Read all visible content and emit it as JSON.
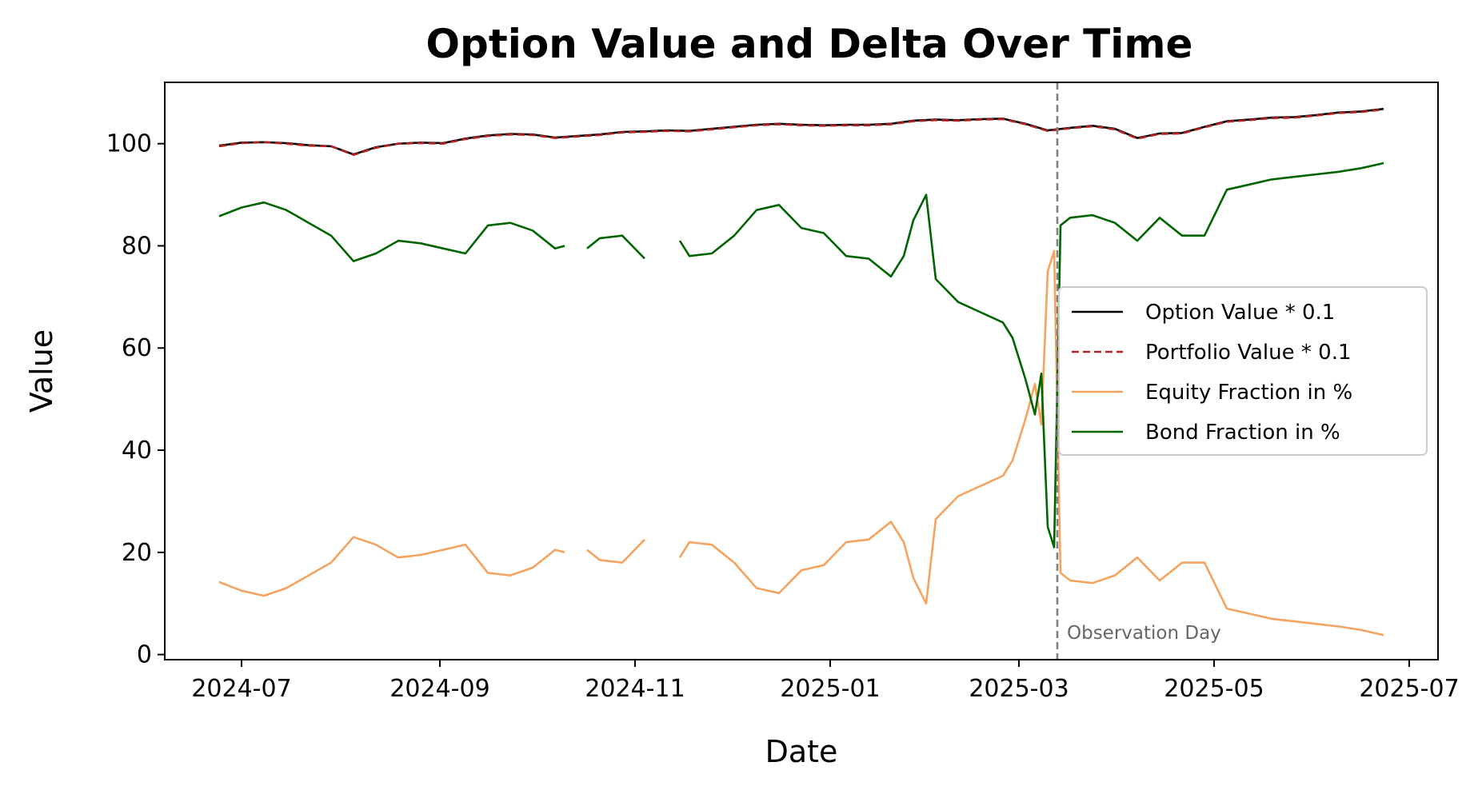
{
  "chart_data": {
    "type": "line",
    "title": "Option Value and Delta Over Time",
    "xlabel": "Date",
    "ylabel": "Value",
    "xlim": [
      "2024-06-07",
      "2025-07-10"
    ],
    "ylim": [
      -1,
      112
    ],
    "x_ticks": [
      "2024-07",
      "2024-09",
      "2024-11",
      "2025-01",
      "2025-03",
      "2025-05",
      "2025-07"
    ],
    "y_ticks": [
      0,
      20,
      40,
      60,
      80,
      100
    ],
    "grid": false,
    "legend_position": "center-right",
    "annotation": {
      "text": "Observation Day",
      "x": "2025-03-13"
    },
    "series": [
      {
        "name": "Option Value * 0.1",
        "color": "#000000",
        "style": "solid",
        "x": [
          "2024-06-24",
          "2024-07-01",
          "2024-07-08",
          "2024-07-15",
          "2024-07-22",
          "2024-07-29",
          "2024-08-05",
          "2024-08-12",
          "2024-08-19",
          "2024-08-26",
          "2024-09-02",
          "2024-09-09",
          "2024-09-16",
          "2024-09-23",
          "2024-09-30",
          "2024-10-07",
          "2024-10-14",
          "2024-10-21",
          "2024-10-28",
          "2024-11-04",
          "2024-11-11",
          "2024-11-18",
          "2024-11-25",
          "2024-12-02",
          "2024-12-09",
          "2024-12-16",
          "2024-12-23",
          "2024-12-30",
          "2025-01-06",
          "2025-01-13",
          "2025-01-20",
          "2025-01-27",
          "2025-02-03",
          "2025-02-10",
          "2025-02-17",
          "2025-02-24",
          "2025-03-03",
          "2025-03-10",
          "2025-03-17",
          "2025-03-24",
          "2025-03-31",
          "2025-04-07",
          "2025-04-14",
          "2025-04-21",
          "2025-04-28",
          "2025-05-05",
          "2025-05-12",
          "2025-05-19",
          "2025-05-26",
          "2025-06-02",
          "2025-06-09",
          "2025-06-16",
          "2025-06-23"
        ],
        "y": [
          99.6,
          100.2,
          100.3,
          100.1,
          99.7,
          99.5,
          97.9,
          99.3,
          100.0,
          100.2,
          100.1,
          101.0,
          101.6,
          101.9,
          101.8,
          101.2,
          101.5,
          101.8,
          102.3,
          102.4,
          102.6,
          102.5,
          102.9,
          103.3,
          103.7,
          103.9,
          103.7,
          103.6,
          103.7,
          103.7,
          103.9,
          104.5,
          104.7,
          104.6,
          104.8,
          104.9,
          103.9,
          102.6,
          103.1,
          103.5,
          102.9,
          101.1,
          102.0,
          102.1,
          103.3,
          104.4,
          104.7,
          105.1,
          105.2,
          105.6,
          106.1,
          106.3,
          106.8
        ]
      },
      {
        "name": "Portfolio Value * 0.1",
        "color": "#b22222",
        "style": "dashed",
        "x": [
          "2024-06-24",
          "2024-07-01",
          "2024-07-08",
          "2024-07-15",
          "2024-07-22",
          "2024-07-29",
          "2024-08-05",
          "2024-08-12",
          "2024-08-19",
          "2024-08-26",
          "2024-09-02",
          "2024-09-09",
          "2024-09-16",
          "2024-09-23",
          "2024-09-30",
          "2024-10-07",
          "2024-10-14",
          "2024-10-21",
          "2024-10-28",
          "2024-11-04",
          "2024-11-11",
          "2024-11-18",
          "2024-11-25",
          "2024-12-02",
          "2024-12-09",
          "2024-12-16",
          "2024-12-23",
          "2024-12-30",
          "2025-01-06",
          "2025-01-13",
          "2025-01-20",
          "2025-01-27",
          "2025-02-03",
          "2025-02-10",
          "2025-02-17",
          "2025-02-24",
          "2025-03-03",
          "2025-03-10",
          "2025-03-17",
          "2025-03-24",
          "2025-03-31",
          "2025-04-07",
          "2025-04-14",
          "2025-04-21",
          "2025-04-28",
          "2025-05-05",
          "2025-05-12",
          "2025-05-19",
          "2025-05-26",
          "2025-06-02",
          "2025-06-09",
          "2025-06-16",
          "2025-06-23"
        ],
        "y": [
          99.5,
          100.1,
          100.3,
          100.0,
          99.6,
          99.5,
          97.8,
          99.2,
          100.0,
          100.1,
          100.0,
          100.9,
          101.5,
          101.8,
          101.7,
          101.1,
          101.4,
          101.7,
          102.2,
          102.3,
          102.5,
          102.4,
          102.8,
          103.2,
          103.6,
          103.8,
          103.6,
          103.5,
          103.6,
          103.6,
          103.8,
          104.4,
          104.6,
          104.5,
          104.7,
          104.8,
          103.8,
          102.5,
          103.0,
          103.4,
          102.8,
          101.0,
          101.9,
          102.0,
          103.2,
          104.3,
          104.6,
          105.0,
          105.1,
          105.5,
          106.0,
          106.2,
          106.7
        ]
      },
      {
        "name": "Equity Fraction in %",
        "color": "#f4a460",
        "style": "solid",
        "x": [
          "2024-06-24",
          "2024-07-01",
          "2024-07-08",
          "2024-07-15",
          "2024-07-22",
          "2024-07-29",
          "2024-08-05",
          "2024-08-12",
          "2024-08-19",
          "2024-08-26",
          "2024-09-02",
          "2024-09-09",
          "2024-09-16",
          "2024-09-23",
          "2024-09-30",
          "2024-10-07",
          "2024-10-10",
          "2024-10-14",
          "2024-10-17",
          "2024-10-21",
          "2024-10-28",
          "2024-11-04",
          "2024-11-11",
          "2024-11-15",
          "2024-11-18",
          "2024-11-25",
          "2024-12-02",
          "2024-12-09",
          "2024-12-16",
          "2024-12-23",
          "2024-12-30",
          "2025-01-06",
          "2025-01-13",
          "2025-01-20",
          "2025-01-24",
          "2025-01-27",
          "2025-01-31",
          "2025-02-03",
          "2025-02-10",
          "2025-02-17",
          "2025-02-24",
          "2025-02-27",
          "2025-03-03",
          "2025-03-06",
          "2025-03-08",
          "2025-03-10",
          "2025-03-12",
          "2025-03-14",
          "2025-03-17",
          "2025-03-24",
          "2025-03-31",
          "2025-04-07",
          "2025-04-14",
          "2025-04-21",
          "2025-04-28",
          "2025-05-05",
          "2025-05-12",
          "2025-05-19",
          "2025-05-26",
          "2025-06-02",
          "2025-06-09",
          "2025-06-16",
          "2025-06-23"
        ],
        "y": [
          14.2,
          12.5,
          11.5,
          13.0,
          15.5,
          18.0,
          23.0,
          21.5,
          19.0,
          19.5,
          20.5,
          21.5,
          16.0,
          15.5,
          17.0,
          20.5,
          20.0,
          null,
          20.5,
          18.5,
          18.0,
          22.5,
          null,
          19.0,
          22.0,
          21.5,
          18.0,
          13.0,
          12.0,
          16.5,
          17.5,
          22.0,
          22.5,
          26.0,
          22.0,
          15.0,
          10.0,
          26.5,
          31.0,
          33.0,
          35.0,
          38.0,
          46.0,
          53.0,
          45.0,
          75.0,
          79.0,
          16.0,
          14.5,
          14.0,
          15.5,
          19.0,
          14.5,
          18.0,
          18.0,
          9.0,
          8.0,
          7.0,
          6.5,
          6.0,
          5.5,
          4.8,
          3.8
        ]
      },
      {
        "name": "Bond Fraction in %",
        "color": "#006400",
        "style": "solid",
        "x": [
          "2024-06-24",
          "2024-07-01",
          "2024-07-08",
          "2024-07-15",
          "2024-07-22",
          "2024-07-29",
          "2024-08-05",
          "2024-08-12",
          "2024-08-19",
          "2024-08-26",
          "2024-09-02",
          "2024-09-09",
          "2024-09-16",
          "2024-09-23",
          "2024-09-30",
          "2024-10-07",
          "2024-10-10",
          "2024-10-14",
          "2024-10-17",
          "2024-10-21",
          "2024-10-28",
          "2024-11-04",
          "2024-11-11",
          "2024-11-15",
          "2024-11-18",
          "2024-11-25",
          "2024-12-02",
          "2024-12-09",
          "2024-12-16",
          "2024-12-23",
          "2024-12-30",
          "2025-01-06",
          "2025-01-13",
          "2025-01-20",
          "2025-01-24",
          "2025-01-27",
          "2025-01-31",
          "2025-02-03",
          "2025-02-10",
          "2025-02-17",
          "2025-02-24",
          "2025-02-27",
          "2025-03-03",
          "2025-03-06",
          "2025-03-08",
          "2025-03-10",
          "2025-03-12",
          "2025-03-14",
          "2025-03-17",
          "2025-03-24",
          "2025-03-31",
          "2025-04-07",
          "2025-04-14",
          "2025-04-21",
          "2025-04-28",
          "2025-05-05",
          "2025-05-12",
          "2025-05-19",
          "2025-05-26",
          "2025-06-02",
          "2025-06-09",
          "2025-06-16",
          "2025-06-23"
        ],
        "y": [
          85.8,
          87.5,
          88.5,
          87.0,
          84.5,
          82.0,
          77.0,
          78.5,
          81.0,
          80.5,
          79.5,
          78.5,
          84.0,
          84.5,
          83.0,
          79.5,
          80.0,
          null,
          79.5,
          81.5,
          82.0,
          77.5,
          null,
          81.0,
          78.0,
          78.5,
          82.0,
          87.0,
          88.0,
          83.5,
          82.5,
          78.0,
          77.5,
          74.0,
          78.0,
          85.0,
          90.0,
          73.5,
          69.0,
          67.0,
          65.0,
          62.0,
          54.0,
          47.0,
          55.0,
          25.0,
          21.0,
          84.0,
          85.5,
          86.0,
          84.5,
          81.0,
          85.5,
          82.0,
          82.0,
          91.0,
          92.0,
          93.0,
          93.5,
          94.0,
          94.5,
          95.2,
          96.2
        ]
      }
    ]
  }
}
